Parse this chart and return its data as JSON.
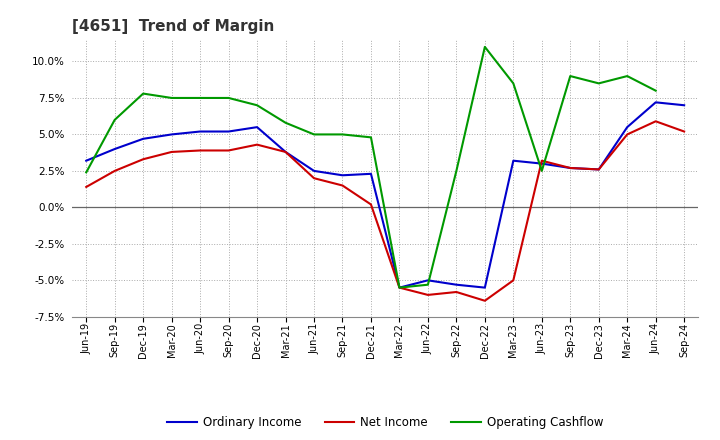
{
  "title": "[4651]  Trend of Margin",
  "x_labels": [
    "Jun-19",
    "Sep-19",
    "Dec-19",
    "Mar-20",
    "Jun-20",
    "Sep-20",
    "Dec-20",
    "Mar-21",
    "Jun-21",
    "Sep-21",
    "Dec-21",
    "Mar-22",
    "Jun-22",
    "Sep-22",
    "Dec-22",
    "Mar-23",
    "Jun-23",
    "Sep-23",
    "Dec-23",
    "Mar-24",
    "Jun-24",
    "Sep-24"
  ],
  "ordinary_income": [
    3.2,
    4.0,
    4.7,
    5.0,
    5.2,
    5.2,
    5.5,
    3.8,
    2.5,
    2.2,
    2.3,
    -5.5,
    -5.0,
    -5.3,
    -5.5,
    3.2,
    3.0,
    2.7,
    2.6,
    5.5,
    7.2,
    7.0
  ],
  "net_income": [
    1.4,
    2.5,
    3.3,
    3.8,
    3.9,
    3.9,
    4.3,
    3.8,
    2.0,
    1.5,
    0.2,
    -5.5,
    -6.0,
    -5.8,
    -6.4,
    -5.0,
    3.2,
    2.7,
    2.6,
    5.0,
    5.9,
    5.2
  ],
  "operating_cashflow": [
    2.4,
    6.0,
    7.8,
    7.5,
    7.5,
    7.5,
    7.0,
    5.8,
    5.0,
    5.0,
    4.8,
    -5.5,
    -5.3,
    2.5,
    11.0,
    8.5,
    2.5,
    9.0,
    8.5,
    9.0,
    8.0,
    null
  ],
  "ylim": [
    -7.5,
    11.5
  ],
  "yticks": [
    -7.5,
    -5.0,
    -2.5,
    0.0,
    2.5,
    5.0,
    7.5,
    10.0
  ],
  "line_colors": {
    "ordinary_income": "#0000cc",
    "net_income": "#cc0000",
    "operating_cashflow": "#009900"
  },
  "legend_labels": [
    "Ordinary Income",
    "Net Income",
    "Operating Cashflow"
  ],
  "background_color": "#ffffff",
  "title_color": "#333333"
}
